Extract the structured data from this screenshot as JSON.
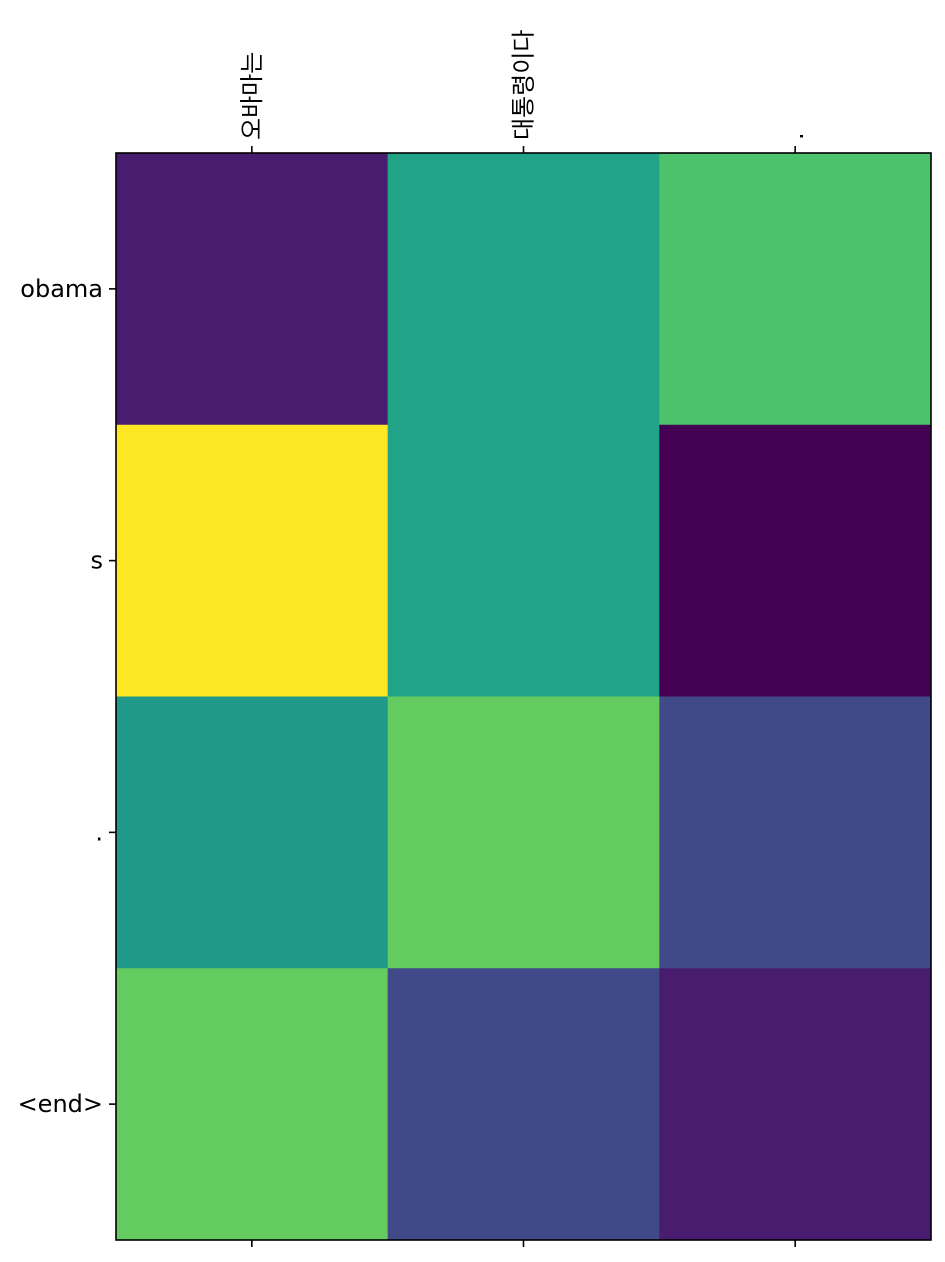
{
  "chart_data": {
    "type": "heatmap",
    "title": "",
    "xlabel": "",
    "ylabel": "",
    "x_tick_labels": [
      "오바마는",
      "대통령이다",
      "."
    ],
    "y_tick_labels": [
      "obama",
      "s",
      ".",
      "<end>"
    ],
    "x_tick_position": "top",
    "colormap": "viridis",
    "grid": false,
    "values": [
      [
        0.08,
        0.5,
        0.72
      ],
      [
        1.0,
        0.5,
        0.0
      ],
      [
        0.48,
        0.78,
        0.2
      ],
      [
        0.78,
        0.2,
        0.08
      ]
    ],
    "cell_colors": [
      [
        "#481c6e",
        "#20a386",
        "#4cc26c"
      ],
      [
        "#fde725",
        "#20a386",
        "#440154"
      ],
      [
        "#1f9a8a",
        "#63cb5f",
        "#404a89"
      ],
      [
        "#63cb5f",
        "#404a89",
        "#481c6e"
      ]
    ]
  }
}
